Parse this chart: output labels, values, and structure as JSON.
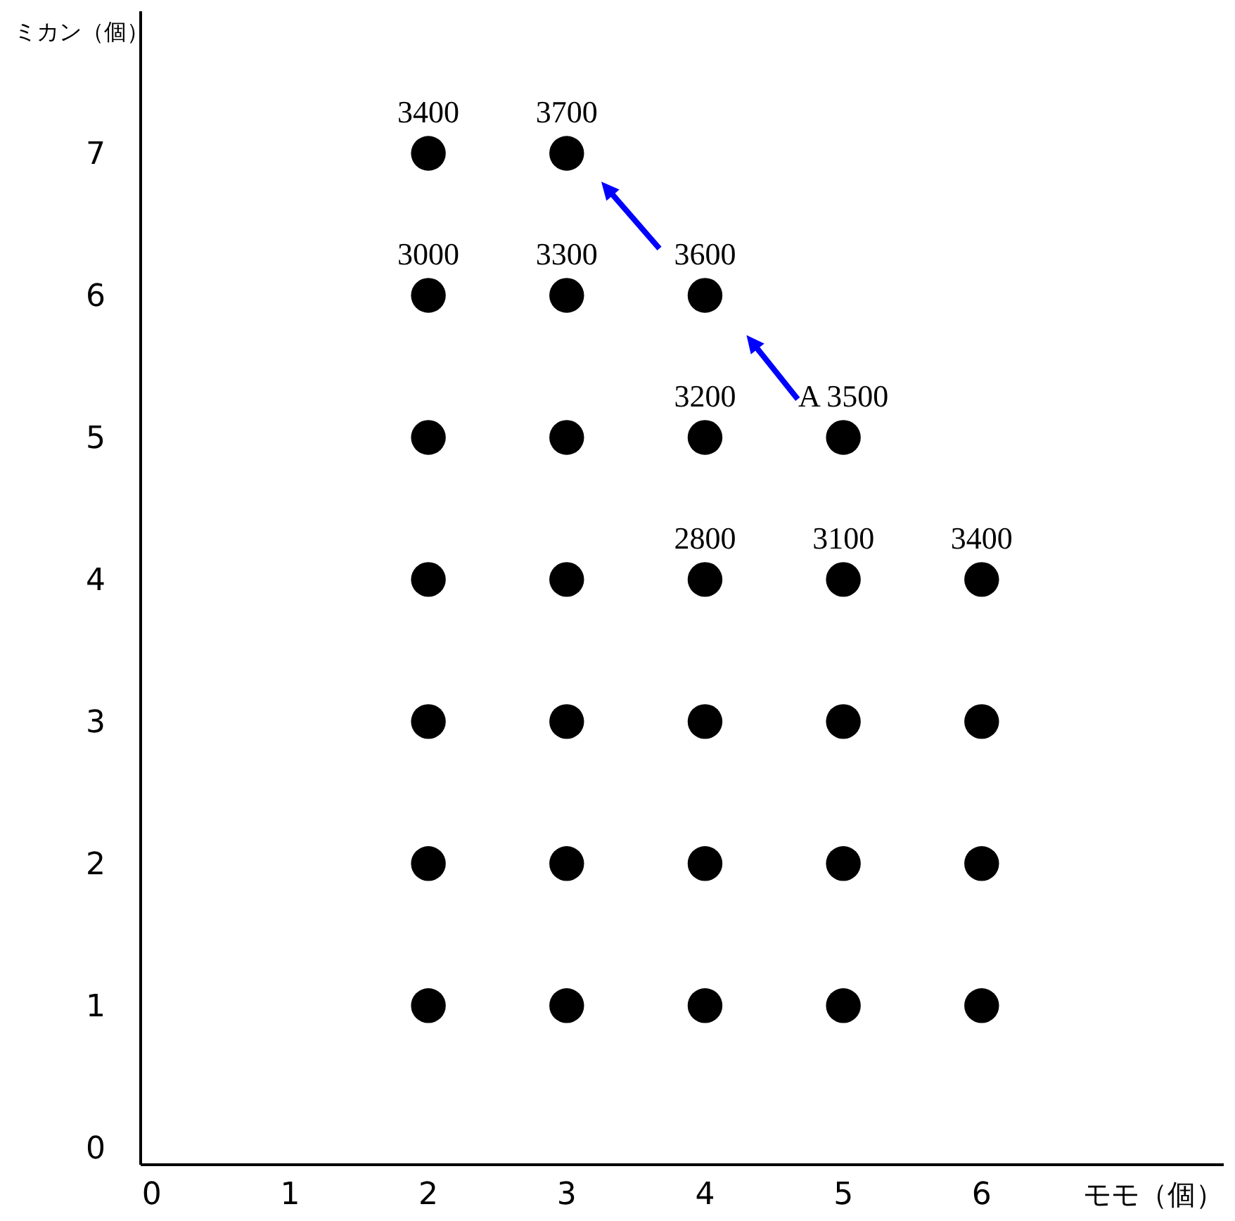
{
  "chart_data": {
    "type": "scatter",
    "xlabel": "モモ（個）",
    "ylabel": "ミカン（個）",
    "x": [
      2,
      2,
      2,
      2,
      2,
      2,
      2,
      3,
      3,
      3,
      3,
      3,
      3,
      3,
      4,
      4,
      4,
      4,
      4,
      4,
      5,
      5,
      5,
      5,
      5,
      6,
      6,
      6,
      6
    ],
    "values": [
      1,
      2,
      3,
      4,
      5,
      6,
      7,
      1,
      2,
      3,
      4,
      5,
      6,
      7,
      1,
      2,
      3,
      4,
      5,
      6,
      1,
      2,
      3,
      4,
      5,
      1,
      2,
      3,
      4
    ],
    "color": "#000000",
    "marker": "circle",
    "grid": false,
    "xlim": [
      -0.08,
      7.75
    ],
    "ylim": [
      -0.12,
      8.0
    ],
    "xticks": [
      0,
      1,
      2,
      3,
      4,
      5,
      6
    ],
    "yticks": [
      0,
      1,
      2,
      3,
      4,
      5,
      6,
      7
    ],
    "annotations": [
      {
        "text": "3400",
        "x": 2,
        "y": 7
      },
      {
        "text": "3700",
        "x": 3,
        "y": 7
      },
      {
        "text": "3000",
        "x": 2,
        "y": 6
      },
      {
        "text": "3300",
        "x": 3,
        "y": 6
      },
      {
        "text": "3600",
        "x": 4,
        "y": 6
      },
      {
        "text": "3200",
        "x": 4,
        "y": 5
      },
      {
        "text": "A 3500",
        "x": 5,
        "y": 5
      },
      {
        "text": "2800",
        "x": 4,
        "y": 4
      },
      {
        "text": "3100",
        "x": 5,
        "y": 4
      },
      {
        "text": "3400",
        "x": 6,
        "y": 4
      }
    ]
  }
}
